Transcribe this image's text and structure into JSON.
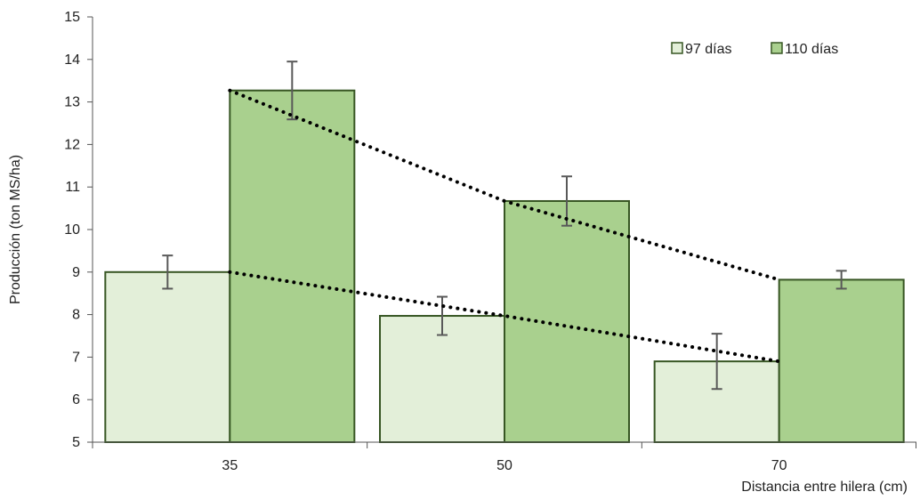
{
  "chart_data": {
    "type": "bar",
    "categories": [
      "35",
      "50",
      "70"
    ],
    "series": [
      {
        "name": "97 días",
        "values": [
          9.0,
          7.97,
          6.9
        ],
        "errors": [
          0.39,
          0.45,
          0.65
        ],
        "color": "#e3efd9"
      },
      {
        "name": "110 días",
        "values": [
          13.27,
          10.67,
          8.82
        ],
        "errors": [
          0.68,
          0.58,
          0.21
        ],
        "color": "#a9d08e"
      }
    ],
    "trendlines": true,
    "title": "",
    "xlabel": "Distancia entre hilera (cm)",
    "ylabel": "Producción (ton MS/ha)",
    "ylim": [
      5,
      15
    ],
    "yticks": [
      5,
      6,
      7,
      8,
      9,
      10,
      11,
      12,
      13,
      14,
      15
    ],
    "grid": false,
    "legend_position": "top-right",
    "bar_border_color": "#375623",
    "error_bar_color": "#595959",
    "trendline_color": "#000000"
  }
}
